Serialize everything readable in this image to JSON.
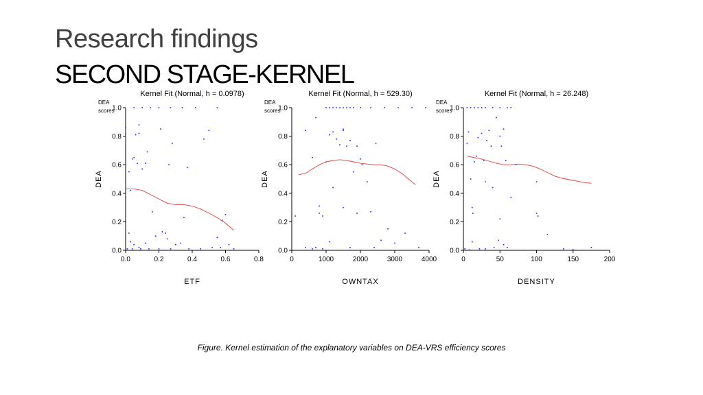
{
  "slide": {
    "title": "Research findings",
    "subtitle": "SECOND STAGE-KERNEL",
    "caption": "Figure. Kernel estimation of the explanatory variables on DEA-VRS efficiency scores"
  },
  "colors": {
    "points": "#1a1aff",
    "fit": "#e83a3a",
    "axis": "#000000"
  },
  "chart_data": [
    {
      "type": "scatter",
      "title": "Kernel Fit (Normal, h = 0.0978)",
      "xlabel": "ETF",
      "ylabel": "DEA",
      "corner_label": [
        "DEA",
        "scores"
      ],
      "xlim": [
        0,
        0.8
      ],
      "ylim": [
        0,
        1
      ],
      "xticks": [
        "0.0",
        "0.2",
        "0.4",
        "0.6",
        "0.8"
      ],
      "yticks": [
        "0.0",
        "0.2",
        "0.4",
        "0.6",
        "0.8",
        "1.0"
      ],
      "points": [
        [
          0.0,
          0.86
        ],
        [
          0.0,
          0.37
        ],
        [
          0.02,
          0.55
        ],
        [
          0.03,
          0.42
        ],
        [
          0.04,
          0.64
        ],
        [
          0.05,
          0.65
        ],
        [
          0.06,
          0.81
        ],
        [
          0.07,
          0.61
        ],
        [
          0.08,
          0.88
        ],
        [
          0.08,
          0.82
        ],
        [
          0.1,
          0.57
        ],
        [
          0.12,
          0.61
        ],
        [
          0.13,
          0.69
        ],
        [
          0.16,
          0.27
        ],
        [
          0.21,
          0.85
        ],
        [
          0.24,
          0.12
        ],
        [
          0.26,
          0.6
        ],
        [
          0.28,
          0.75
        ],
        [
          0.37,
          0.58
        ],
        [
          0.35,
          0.23
        ],
        [
          0.47,
          0.78
        ],
        [
          0.5,
          0.84
        ],
        [
          0.55,
          0.09
        ],
        [
          0.58,
          0.21
        ],
        [
          0.6,
          0.25
        ],
        [
          0.02,
          0.12
        ],
        [
          0.03,
          0.06
        ],
        [
          0.05,
          0.04
        ],
        [
          0.08,
          0.02
        ],
        [
          0.12,
          0.05
        ],
        [
          0.18,
          0.1
        ],
        [
          0.22,
          0.13
        ],
        [
          0.25,
          0.08
        ],
        [
          0.3,
          0.04
        ],
        [
          0.33,
          0.05
        ],
        [
          0.38,
          0.01
        ],
        [
          0.45,
          0.01
        ],
        [
          0.52,
          0.02
        ],
        [
          0.57,
          0.02
        ],
        [
          0.62,
          0.04
        ],
        [
          0.65,
          0.01
        ],
        [
          0.01,
          0.01
        ],
        [
          0.04,
          0.01
        ],
        [
          0.09,
          0.01
        ],
        [
          0.14,
          0.01
        ],
        [
          0.2,
          0.01
        ],
        [
          0.27,
          0.01
        ],
        [
          0.05,
          1.0
        ],
        [
          0.1,
          1.0
        ],
        [
          0.15,
          1.0
        ],
        [
          0.2,
          1.0
        ],
        [
          0.27,
          1.0
        ],
        [
          0.34,
          1.0
        ],
        [
          0.42,
          1.0
        ],
        [
          0.55,
          1.0
        ]
      ],
      "fit": [
        [
          0.0,
          0.43
        ],
        [
          0.05,
          0.43
        ],
        [
          0.1,
          0.42
        ],
        [
          0.15,
          0.39
        ],
        [
          0.2,
          0.36
        ],
        [
          0.25,
          0.33
        ],
        [
          0.3,
          0.32
        ],
        [
          0.35,
          0.32
        ],
        [
          0.4,
          0.31
        ],
        [
          0.45,
          0.29
        ],
        [
          0.5,
          0.26
        ],
        [
          0.55,
          0.23
        ],
        [
          0.6,
          0.19
        ],
        [
          0.65,
          0.14
        ]
      ]
    },
    {
      "type": "scatter",
      "title": "Kernel Fit (Normal, h = 529.30)",
      "xlabel": "OWNTAX",
      "ylabel": "DEA",
      "corner_label": [
        "DEA",
        "scores"
      ],
      "xlim": [
        0,
        4000
      ],
      "ylim": [
        0,
        1
      ],
      "xticks": [
        "0",
        "1000",
        "2000",
        "3000",
        "4000"
      ],
      "yticks": [
        "0.0",
        "0.2",
        "0.4",
        "0.6",
        "0.8",
        "1.0"
      ],
      "points": [
        [
          400,
          0.84
        ],
        [
          600,
          0.65
        ],
        [
          700,
          0.93
        ],
        [
          1000,
          0.62
        ],
        [
          1100,
          0.81
        ],
        [
          1200,
          0.83
        ],
        [
          1300,
          0.78
        ],
        [
          1400,
          0.74
        ],
        [
          1500,
          0.85
        ],
        [
          1500,
          0.84
        ],
        [
          1600,
          0.73
        ],
        [
          1700,
          0.77
        ],
        [
          1800,
          0.55
        ],
        [
          1900,
          0.73
        ],
        [
          2000,
          0.64
        ],
        [
          2050,
          0.6
        ],
        [
          2200,
          0.48
        ],
        [
          2450,
          0.75
        ],
        [
          1200,
          0.44
        ],
        [
          800,
          0.31
        ],
        [
          800,
          0.26
        ],
        [
          900,
          0.24
        ],
        [
          1500,
          0.3
        ],
        [
          1900,
          0.26
        ],
        [
          2300,
          0.27
        ],
        [
          2600,
          0.07
        ],
        [
          2800,
          0.15
        ],
        [
          3000,
          0.05
        ],
        [
          3300,
          0.12
        ],
        [
          1100,
          0.06
        ],
        [
          1700,
          0.02
        ],
        [
          2400,
          0.02
        ],
        [
          3700,
          0.02
        ],
        [
          400,
          0.02
        ],
        [
          600,
          0.01
        ],
        [
          700,
          0.02
        ],
        [
          900,
          0.01
        ],
        [
          100,
          0.24
        ],
        [
          1000,
          1.0
        ],
        [
          1100,
          1.0
        ],
        [
          1200,
          1.0
        ],
        [
          1300,
          1.0
        ],
        [
          1400,
          1.0
        ],
        [
          1500,
          1.0
        ],
        [
          1600,
          1.0
        ],
        [
          1700,
          1.0
        ],
        [
          1800,
          1.0
        ],
        [
          2000,
          1.0
        ],
        [
          2300,
          1.0
        ],
        [
          2700,
          1.0
        ],
        [
          3100,
          1.0
        ],
        [
          3500,
          1.0
        ],
        [
          3900,
          1.0
        ]
      ],
      "fit": [
        [
          200,
          0.53
        ],
        [
          400,
          0.54
        ],
        [
          600,
          0.57
        ],
        [
          800,
          0.6
        ],
        [
          1000,
          0.62
        ],
        [
          1200,
          0.63
        ],
        [
          1400,
          0.635
        ],
        [
          1600,
          0.63
        ],
        [
          1800,
          0.62
        ],
        [
          2000,
          0.61
        ],
        [
          2200,
          0.605
        ],
        [
          2400,
          0.6
        ],
        [
          2600,
          0.6
        ],
        [
          2800,
          0.59
        ],
        [
          3000,
          0.57
        ],
        [
          3200,
          0.54
        ],
        [
          3400,
          0.5
        ],
        [
          3600,
          0.46
        ]
      ]
    },
    {
      "type": "scatter",
      "title": "Kernel Fit (Normal, h = 26.248)",
      "xlabel": "DENSITY",
      "ylabel": "DEA",
      "corner_label": [
        "DEA",
        "scores"
      ],
      "xlim": [
        0,
        200
      ],
      "ylim": [
        0,
        1
      ],
      "xticks": [
        "0",
        "50",
        "100",
        "150",
        "200"
      ],
      "yticks": [
        "0.0",
        "0.2",
        "0.4",
        "0.6",
        "0.8",
        "1.0"
      ],
      "points": [
        [
          5,
          0.75
        ],
        [
          7,
          0.83
        ],
        [
          10,
          0.5
        ],
        [
          12,
          0.3
        ],
        [
          13,
          0.26
        ],
        [
          15,
          0.62
        ],
        [
          18,
          0.66
        ],
        [
          20,
          0.79
        ],
        [
          25,
          0.82
        ],
        [
          28,
          0.63
        ],
        [
          30,
          0.48
        ],
        [
          32,
          0.77
        ],
        [
          35,
          0.84
        ],
        [
          38,
          0.73
        ],
        [
          40,
          0.44
        ],
        [
          45,
          0.93
        ],
        [
          50,
          0.8
        ],
        [
          52,
          0.73
        ],
        [
          55,
          0.85
        ],
        [
          58,
          0.63
        ],
        [
          65,
          0.37
        ],
        [
          72,
          0.6
        ],
        [
          100,
          0.48
        ],
        [
          100,
          0.26
        ],
        [
          102,
          0.24
        ],
        [
          115,
          0.11
        ],
        [
          137,
          0.01
        ],
        [
          150,
          0.005
        ],
        [
          175,
          0.02
        ],
        [
          12,
          0.06
        ],
        [
          22,
          0.01
        ],
        [
          30,
          0.01
        ],
        [
          42,
          0.02
        ],
        [
          48,
          0.07
        ],
        [
          50,
          0.22
        ],
        [
          55,
          0.04
        ],
        [
          60,
          0.02
        ],
        [
          8,
          0.003
        ],
        [
          2,
          0.01
        ],
        [
          5,
          1.0
        ],
        [
          10,
          1.0
        ],
        [
          15,
          1.0
        ],
        [
          20,
          1.0
        ],
        [
          25,
          1.0
        ],
        [
          30,
          1.0
        ],
        [
          40,
          1.0
        ],
        [
          50,
          1.0
        ],
        [
          60,
          1.0
        ],
        [
          65,
          1.0
        ]
      ],
      "fit": [
        [
          5,
          0.66
        ],
        [
          15,
          0.65
        ],
        [
          25,
          0.64
        ],
        [
          35,
          0.625
        ],
        [
          45,
          0.61
        ],
        [
          55,
          0.6
        ],
        [
          65,
          0.6
        ],
        [
          75,
          0.605
        ],
        [
          85,
          0.6
        ],
        [
          95,
          0.59
        ],
        [
          105,
          0.57
        ],
        [
          115,
          0.545
        ],
        [
          125,
          0.52
        ],
        [
          135,
          0.505
        ],
        [
          145,
          0.495
        ],
        [
          155,
          0.485
        ],
        [
          165,
          0.475
        ],
        [
          175,
          0.47
        ]
      ]
    }
  ]
}
